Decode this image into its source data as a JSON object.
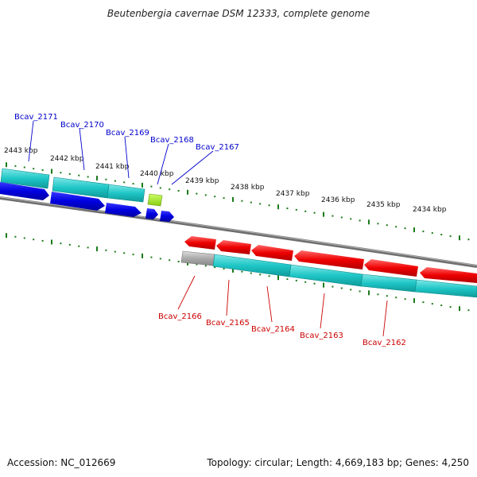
{
  "title": "Beutenbergia cavernae DSM 12333, complete genome",
  "footer": {
    "accession": "Accession: NC_012669",
    "topology": "Topology: circular; Length: 4,669,183 bp; Genes: 4,250"
  },
  "colors": {
    "backbone": "#808080",
    "tick": "#1a7a1a",
    "cds": "#1fc6c6",
    "forward_gene": "#0000e0",
    "reverse_gene": "#ee0000",
    "pseudo_gene": "#aaaaaa",
    "rna_gene": "#99dd22",
    "top_label": "#0000cc",
    "bottom_label": "#cc0000"
  },
  "scale_labels": [
    "2443 kbp",
    "2442 kbp",
    "2441 kbp",
    "2440 kbp",
    "2439 kbp",
    "2438 kbp",
    "2437 kbp",
    "2436 kbp",
    "2435 kbp",
    "2434 kbp"
  ],
  "top_labels": [
    "Bcav_2171",
    "Bcav_2170",
    "Bcav_2169",
    "Bcav_2168",
    "Bcav_2167"
  ],
  "bottom_labels": [
    "Bcav_2166",
    "Bcav_2165",
    "Bcav_2164",
    "Bcav_2163",
    "Bcav_2162"
  ]
}
